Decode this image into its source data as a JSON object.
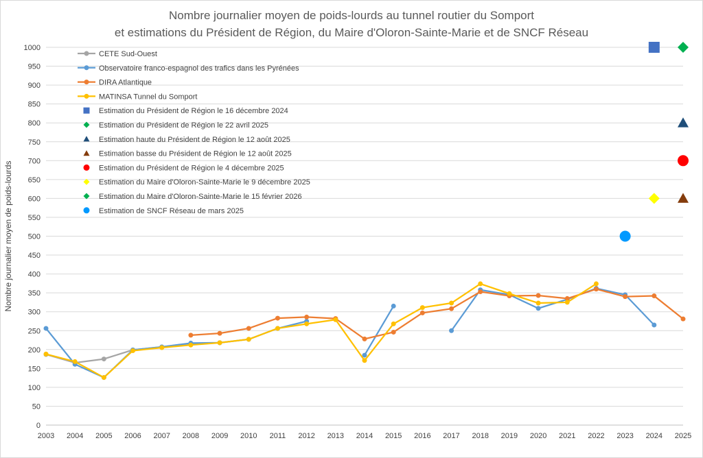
{
  "chart_data": {
    "type": "line",
    "title": [
      "Nombre journalier moyen de poids-lourds au tunnel routier du Somport",
      "et estimations du Président de Région, du Maire d'Oloron-Sainte-Marie et de SNCF Réseau"
    ],
    "xlabel": "",
    "ylabel": "Nombre journalier moyen de poids-lourds",
    "ylim": [
      0,
      1000
    ],
    "ytick_step": 50,
    "grid": true,
    "categories": [
      "2003",
      "2004",
      "2005",
      "2006",
      "2007",
      "2008",
      "2009",
      "2010",
      "2011",
      "2012",
      "2013",
      "2014",
      "2015",
      "2016",
      "2017",
      "2018",
      "2019",
      "2020",
      "2021",
      "2022",
      "2023",
      "2024",
      "2025"
    ],
    "series": [
      {
        "name": "CETE Sud-Ouest",
        "kind": "line",
        "color": "#a5a5a5",
        "values": [
          187,
          165,
          175,
          199,
          207,
          216,
          218,
          null,
          null,
          null,
          null,
          null,
          null,
          null,
          null,
          null,
          null,
          null,
          null,
          null,
          null,
          null,
          null
        ]
      },
      {
        "name": "Observatoire franco-espagnol des trafics dans les Pyrénées",
        "kind": "line",
        "color": "#5b9bd5",
        "values": [
          256,
          161,
          126,
          199,
          207,
          217,
          218,
          227,
          256,
          275,
          null,
          185,
          315,
          null,
          250,
          358,
          345,
          309,
          333,
          362,
          345,
          265,
          null
        ]
      },
      {
        "name": "DIRA Atlantique",
        "kind": "line",
        "color": "#ed7d31",
        "values": [
          null,
          null,
          null,
          null,
          null,
          238,
          243,
          256,
          283,
          286,
          282,
          228,
          246,
          297,
          308,
          353,
          342,
          343,
          335,
          360,
          340,
          342,
          281
        ]
      },
      {
        "name": "MATINSA Tunnel du Somport",
        "kind": "line",
        "color": "#ffc000",
        "values": [
          188,
          168,
          126,
          197,
          205,
          212,
          218,
          227,
          256,
          268,
          279,
          171,
          268,
          311,
          323,
          374,
          348,
          323,
          325,
          374,
          null,
          null,
          null
        ]
      },
      {
        "name": "Estimation du Président de Région le 16 décembre 2024",
        "kind": "marker",
        "marker": "square",
        "color": "#4472c4",
        "points": [
          {
            "x": "2024",
            "y": 1000
          }
        ]
      },
      {
        "name": "Estimation du Président de Région le 22 avril 2025",
        "kind": "marker",
        "marker": "diamond",
        "color": "#00b050",
        "points": [
          {
            "x": "2025",
            "y": 1000
          }
        ]
      },
      {
        "name": "Estimation haute du Président de Région le 12 août 2025",
        "kind": "marker",
        "marker": "triangle",
        "color": "#1f4e79",
        "points": [
          {
            "x": "2025",
            "y": 800
          }
        ]
      },
      {
        "name": "Estimation basse du Président de Région le 12 août 2025",
        "kind": "marker",
        "marker": "triangle",
        "color": "#843c0c",
        "points": [
          {
            "x": "2025",
            "y": 600
          }
        ]
      },
      {
        "name": "Estimation du Président de Région le 4 décembre 2025",
        "kind": "marker",
        "marker": "circle",
        "color": "#ff0000",
        "points": [
          {
            "x": "2025",
            "y": 700
          }
        ]
      },
      {
        "name": "Estimation du Maire d'Oloron-Sainte-Marie le 9 décembre 2025",
        "kind": "marker",
        "marker": "diamond",
        "color": "#ffff00",
        "points": [
          {
            "x": "2024",
            "y": 600
          }
        ]
      },
      {
        "name": "Estimation du Maire d'Oloron-Sainte-Marie le 15 février 2026",
        "kind": "marker",
        "marker": "diamond",
        "color": "#00b050",
        "points": []
      },
      {
        "name": "Estimation de SNCF Réseau de mars 2025",
        "kind": "marker",
        "marker": "circle",
        "color": "#0099ff",
        "points": [
          {
            "x": "2023",
            "y": 500
          }
        ]
      }
    ],
    "legend": "top-left, inside plot"
  }
}
